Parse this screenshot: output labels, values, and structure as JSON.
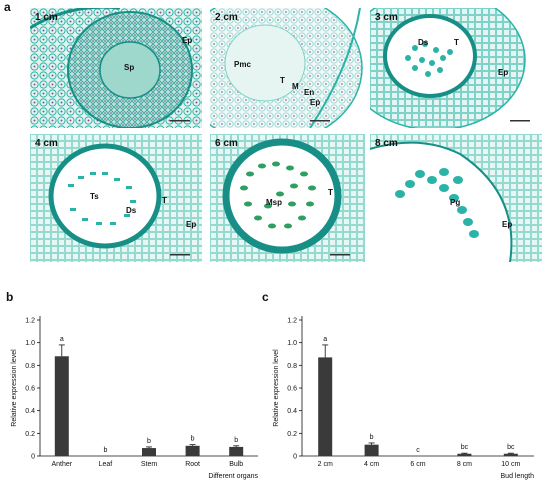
{
  "panels": {
    "a": "a",
    "b": "b",
    "c": "c"
  },
  "micrographs": [
    {
      "stage": "1 cm",
      "labels": [
        "Ep",
        "Sp"
      ]
    },
    {
      "stage": "2 cm",
      "labels": [
        "Pmc",
        "T",
        "M",
        "En",
        "Ep"
      ]
    },
    {
      "stage": "3 cm",
      "labels": [
        "Ds",
        "T",
        "Ep"
      ]
    },
    {
      "stage": "4 cm",
      "labels": [
        "Ts",
        "Ds",
        "T",
        "Ep"
      ]
    },
    {
      "stage": "6 cm",
      "labels": [
        "Msp",
        "T"
      ]
    },
    {
      "stage": "8 cm",
      "labels": [
        "Pg",
        "Ep"
      ]
    }
  ],
  "colors": {
    "stain": "#2bb3a7",
    "stain_dark": "#178f86",
    "cell_fill": "#dff3ee",
    "bar": "#3a3a3a",
    "microspore_green": "#2e9e63"
  },
  "chart_data": [
    {
      "type": "bar",
      "panel": "b",
      "categories": [
        "Anther",
        "Leaf",
        "Stem",
        "Root",
        "Bulb"
      ],
      "values": [
        0.88,
        0.0,
        0.07,
        0.09,
        0.08
      ],
      "errors": [
        0.1,
        0.0,
        0.01,
        0.01,
        0.01
      ],
      "significance": [
        "a",
        "b",
        "b",
        "b",
        "b"
      ],
      "xlabel": "Different organs",
      "ylabel": "Relative expression level",
      "ylim": [
        0,
        1.2
      ],
      "yticks": [
        "0",
        "0.2",
        "0.4",
        "0.6",
        "0.8",
        "1.0",
        "1.2"
      ]
    },
    {
      "type": "bar",
      "panel": "c",
      "categories": [
        "2 cm",
        "4 cm",
        "6 cm",
        "8 cm",
        "10 cm"
      ],
      "values": [
        0.87,
        0.1,
        0.0,
        0.02,
        0.02
      ],
      "errors": [
        0.11,
        0.015,
        0.0,
        0.005,
        0.005
      ],
      "significance": [
        "a",
        "b",
        "c",
        "bc",
        "bc"
      ],
      "xlabel": "Bud length",
      "ylabel": "Relative expression level",
      "ylim": [
        0,
        1.2
      ],
      "yticks": [
        "0",
        "0.2",
        "0.4",
        "0.6",
        "0.8",
        "1.0",
        "1.2"
      ]
    }
  ]
}
